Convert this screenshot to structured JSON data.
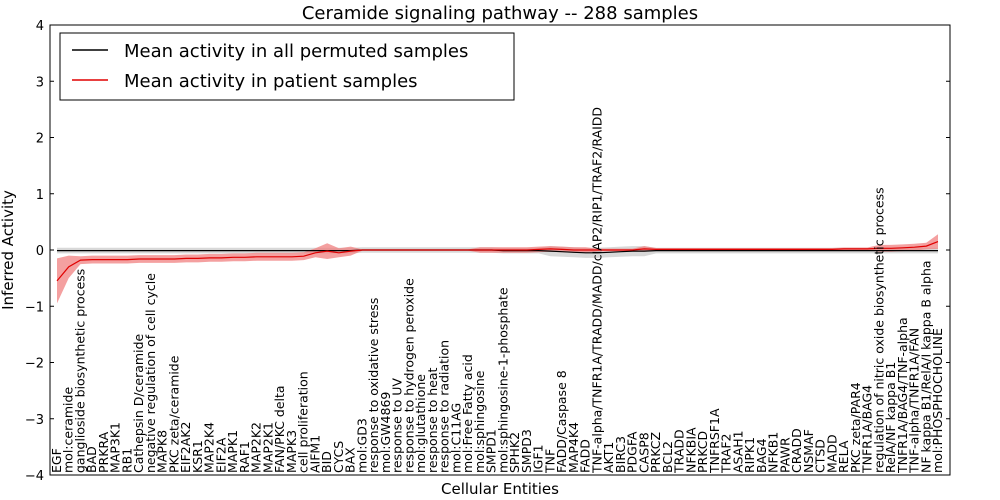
{
  "chart_data": {
    "type": "line",
    "title": "Ceramide signaling pathway -- 288 samples",
    "xlabel": "Cellular Entities",
    "ylabel": "Inferred Activity",
    "ylim": [
      -4,
      4
    ],
    "yticks": [
      -4,
      -3,
      -2,
      -1,
      0,
      1,
      2,
      3,
      4
    ],
    "legend_position": "top-left",
    "colors": {
      "permuted": "#000000",
      "patient": "#e00000",
      "permuted_band": "#c8c8c8",
      "patient_band": "#f08080"
    },
    "categories": [
      "EGF",
      "mol:ceramide",
      "ganglioside biosynthetic process",
      "BAD",
      "PRKRA",
      "MAP3K1",
      "RB1",
      "Cathepsin D/ceramide",
      "negative regulation of cell cycle",
      "MAPK8",
      "PKC zeta/ceramide",
      "EIF2AK2",
      "KSR1",
      "MAP2K4",
      "EIF2A",
      "MAPK1",
      "RAF1",
      "MAP2K2",
      "MAP2K1",
      "FAN/PKC delta",
      "MAPK3",
      "cell proliferation",
      "AIFM1",
      "BID",
      "CYCS",
      "BAX",
      "mol:GD3",
      "response to oxidative stress",
      "mol:GW4869",
      "response to UV",
      "response to hydrogen peroxide",
      "mol:glutathione",
      "response to heat",
      "response to radiation",
      "mol:C11AG",
      "mol:Free Fatty acid",
      "mol:sphingosine",
      "SMPD1",
      "mol:sphingosine-1-phosphate",
      "SPHK2",
      "SMPD3",
      "IGF1",
      "TNF",
      "FADD/Caspase 8",
      "MAP4K4",
      "FADD",
      "TNF-alpha/TNFR1A/TRADD/MADD/cIAP2/RIP1/TRAF2/RAIDD",
      "AKT1",
      "BIRC3",
      "PDGFA",
      "CASP8",
      "PRKCZ",
      "BCL2",
      "TRADD",
      "NFKBIA",
      "PRKCD",
      "TNFRSF1A",
      "TRAF2",
      "ASAH1",
      "RIPK1",
      "BAG4",
      "NFKB1",
      "PAWR",
      "CRADD",
      "NSMAF",
      "CTSD",
      "MADD",
      "RELA",
      "PKC zeta/PAR4",
      "TNFR1A/BAG4",
      "regulation of nitric oxide biosynthetic process",
      "RelA/NF kappa B1",
      "TNFR1A/BAG4/TNF-alpha",
      "TNF-alpha/TNFR1A/FAN",
      "NF kappa B1/RelA/I kappa B alpha",
      "mol:PHOSPHOCHOLINE"
    ],
    "series": [
      {
        "name": "Mean activity in all permuted samples",
        "values": [
          -0.01,
          -0.01,
          -0.01,
          -0.01,
          -0.01,
          -0.01,
          -0.01,
          -0.01,
          -0.01,
          -0.01,
          -0.01,
          -0.01,
          -0.01,
          -0.01,
          -0.01,
          -0.01,
          -0.01,
          -0.01,
          -0.01,
          -0.01,
          -0.01,
          -0.01,
          -0.01,
          -0.01,
          -0.01,
          -0.01,
          0.0,
          0.0,
          0.0,
          0.0,
          0.0,
          0.0,
          0.0,
          0.0,
          0.0,
          0.0,
          0.0,
          0.0,
          -0.01,
          -0.01,
          -0.01,
          -0.01,
          -0.02,
          -0.03,
          -0.04,
          -0.05,
          -0.05,
          -0.04,
          -0.03,
          -0.02,
          -0.02,
          -0.01,
          -0.01,
          -0.01,
          -0.01,
          -0.01,
          -0.01,
          -0.01,
          -0.01,
          -0.01,
          -0.01,
          -0.01,
          -0.01,
          -0.01,
          -0.01,
          -0.01,
          -0.01,
          -0.01,
          -0.01,
          -0.01,
          -0.01,
          -0.01,
          -0.01,
          -0.01,
          -0.01,
          -0.01
        ]
      },
      {
        "name": "Mean activity in patient samples",
        "values": [
          -0.55,
          -0.3,
          -0.18,
          -0.17,
          -0.17,
          -0.17,
          -0.17,
          -0.16,
          -0.16,
          -0.16,
          -0.16,
          -0.15,
          -0.15,
          -0.14,
          -0.14,
          -0.13,
          -0.13,
          -0.12,
          -0.12,
          -0.12,
          -0.12,
          -0.11,
          -0.05,
          -0.02,
          -0.05,
          -0.02,
          0.0,
          0.0,
          0.0,
          0.0,
          0.0,
          0.0,
          0.0,
          0.0,
          0.0,
          0.0,
          0.0,
          0.0,
          0.0,
          0.0,
          0.0,
          0.01,
          0.02,
          0.01,
          0.0,
          0.0,
          0.0,
          0.0,
          0.0,
          0.0,
          0.02,
          0.01,
          0.01,
          0.01,
          0.01,
          0.01,
          0.01,
          0.01,
          0.01,
          0.01,
          0.01,
          0.01,
          0.01,
          0.01,
          0.01,
          0.01,
          0.01,
          0.02,
          0.02,
          0.02,
          0.03,
          0.03,
          0.04,
          0.05,
          0.07,
          0.15
        ]
      }
    ]
  }
}
